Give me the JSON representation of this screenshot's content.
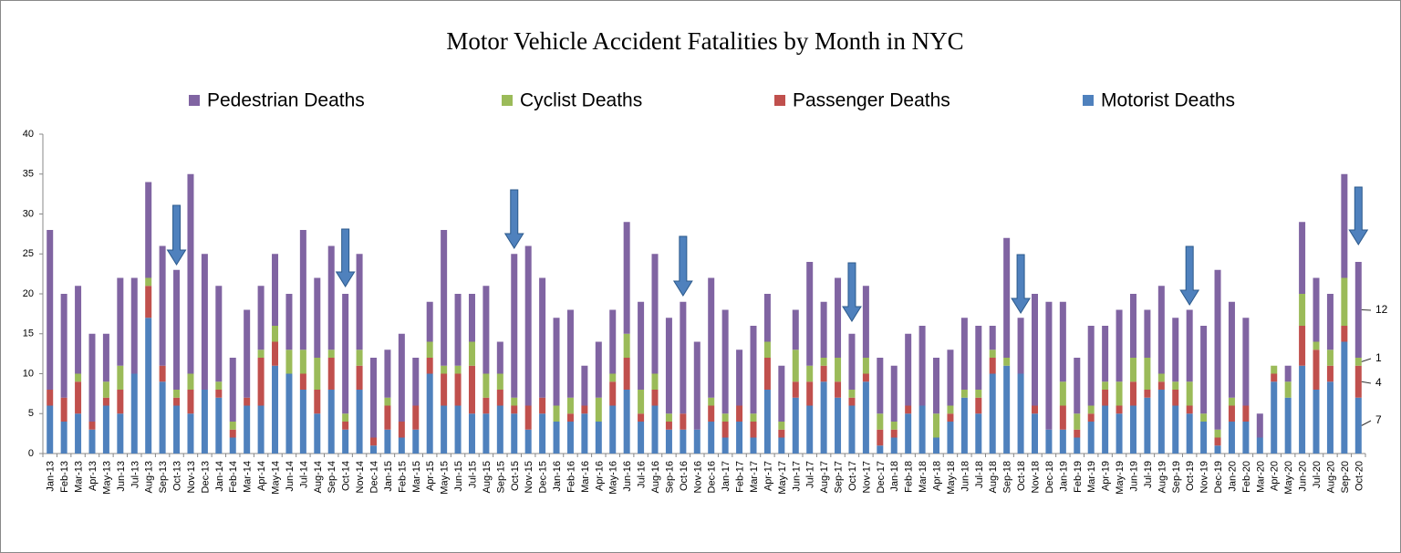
{
  "chart_data": {
    "type": "stacked-bar",
    "title": "Motor Vehicle Accident Fatalities by Month in NYC",
    "categories": [
      "Jan-13",
      "Feb-13",
      "Mar-13",
      "Apr-13",
      "May-13",
      "Jun-13",
      "Jul-13",
      "Aug-13",
      "Sep-13",
      "Oct-13",
      "Nov-13",
      "Dec-13",
      "Jan-14",
      "Feb-14",
      "Mar-14",
      "Apr-14",
      "May-14",
      "Jun-14",
      "Jul-14",
      "Aug-14",
      "Sep-14",
      "Oct-14",
      "Nov-14",
      "Dec-14",
      "Jan-15",
      "Feb-15",
      "Mar-15",
      "Apr-15",
      "May-15",
      "Jun-15",
      "Jul-15",
      "Aug-15",
      "Sep-15",
      "Oct-15",
      "Nov-15",
      "Dec-15",
      "Jan-16",
      "Feb-16",
      "Mar-16",
      "Apr-16",
      "May-16",
      "Jun-16",
      "Jul-16",
      "Aug-16",
      "Sep-16",
      "Oct-16",
      "Nov-16",
      "Dec-16",
      "Jan-17",
      "Feb-17",
      "Mar-17",
      "Apr-17",
      "May-17",
      "Jun-17",
      "Jul-17",
      "Aug-17",
      "Sep-17",
      "Oct-17",
      "Nov-17",
      "Dec-17",
      "Jan-18",
      "Feb-18",
      "Mar-18",
      "Apr-18",
      "May-18",
      "Jun-18",
      "Jul-18",
      "Aug-18",
      "Sep-18",
      "Oct-18",
      "Nov-18",
      "Dec-18",
      "Jan-19",
      "Feb-19",
      "Mar-19",
      "Apr-19",
      "May-19",
      "Jun-19",
      "Jul-19",
      "Aug-19",
      "Sep-19",
      "Oct-19",
      "Nov-19",
      "Dec-19",
      "Jan-20",
      "Feb-20",
      "Mar-20",
      "Apr-20",
      "May-20",
      "Jun-20",
      "Jul-20",
      "Aug-20",
      "Sep-20",
      "Oct-20"
    ],
    "series": [
      {
        "name": "Motorist Deaths",
        "color": "#4f81bd",
        "values": [
          6,
          4,
          5,
          3,
          6,
          5,
          10,
          17,
          9,
          6,
          5,
          8,
          7,
          2,
          6,
          6,
          11,
          10,
          8,
          5,
          8,
          3,
          8,
          1,
          3,
          2,
          3,
          10,
          6,
          6,
          5,
          5,
          6,
          5,
          3,
          5,
          4,
          4,
          5,
          4,
          6,
          8,
          4,
          6,
          3,
          3,
          3,
          4,
          2,
          4,
          2,
          8,
          2,
          7,
          6,
          9,
          7,
          6,
          9,
          1,
          2,
          5,
          6,
          2,
          4,
          7,
          5,
          10,
          11,
          10,
          5,
          3,
          3,
          2,
          4,
          6,
          5,
          6,
          7,
          8,
          6,
          5,
          4,
          1,
          4,
          4,
          2,
          9,
          7,
          11,
          8,
          9,
          14,
          7
        ]
      },
      {
        "name": "Passenger Deaths",
        "color": "#c0504d",
        "values": [
          2,
          3,
          4,
          1,
          1,
          3,
          0,
          4,
          2,
          1,
          3,
          0,
          1,
          1,
          1,
          6,
          3,
          0,
          2,
          3,
          4,
          1,
          3,
          1,
          3,
          2,
          3,
          2,
          4,
          4,
          6,
          2,
          2,
          1,
          3,
          2,
          0,
          1,
          1,
          0,
          3,
          4,
          1,
          2,
          1,
          2,
          0,
          2,
          2,
          2,
          2,
          4,
          1,
          2,
          3,
          2,
          2,
          1,
          1,
          2,
          1,
          1,
          0,
          0,
          1,
          0,
          2,
          2,
          0,
          0,
          1,
          0,
          3,
          1,
          1,
          2,
          1,
          3,
          1,
          1,
          2,
          1,
          0,
          1,
          2,
          2,
          0,
          1,
          0,
          5,
          5,
          2,
          2,
          4
        ]
      },
      {
        "name": "Cyclist Deaths",
        "color": "#9bbb59",
        "values": [
          0,
          0,
          1,
          0,
          2,
          3,
          0,
          1,
          0,
          1,
          2,
          0,
          1,
          1,
          0,
          1,
          2,
          3,
          3,
          4,
          1,
          1,
          2,
          0,
          1,
          0,
          0,
          2,
          1,
          1,
          3,
          3,
          2,
          1,
          0,
          0,
          2,
          2,
          0,
          3,
          1,
          3,
          3,
          2,
          1,
          0,
          0,
          1,
          1,
          0,
          1,
          2,
          1,
          4,
          2,
          1,
          3,
          1,
          2,
          2,
          1,
          0,
          0,
          3,
          1,
          1,
          1,
          1,
          1,
          0,
          0,
          0,
          3,
          2,
          1,
          1,
          3,
          3,
          4,
          1,
          1,
          3,
          1,
          1,
          1,
          0,
          0,
          1,
          2,
          4,
          1,
          2,
          6,
          1
        ]
      },
      {
        "name": "Pedestrian Deaths",
        "color": "#8064a2",
        "values": [
          20,
          13,
          11,
          11,
          6,
          11,
          12,
          12,
          15,
          15,
          25,
          17,
          12,
          8,
          11,
          8,
          9,
          7,
          15,
          10,
          13,
          15,
          12,
          10,
          6,
          11,
          6,
          5,
          17,
          9,
          6,
          11,
          4,
          18,
          20,
          15,
          11,
          11,
          5,
          7,
          8,
          14,
          11,
          15,
          12,
          14,
          11,
          15,
          13,
          7,
          11,
          6,
          7,
          5,
          13,
          7,
          10,
          7,
          9,
          7,
          7,
          9,
          10,
          7,
          7,
          9,
          8,
          3,
          15,
          7,
          14,
          16,
          10,
          7,
          10,
          7,
          9,
          8,
          6,
          11,
          8,
          9,
          11,
          20,
          12,
          11,
          3,
          0,
          2,
          9,
          8,
          7,
          13,
          12
        ]
      }
    ],
    "ylim": [
      0,
      40
    ],
    "yticks": [
      0,
      5,
      10,
      15,
      20,
      25,
      30,
      35,
      40
    ],
    "grid": false,
    "legend": "top"
  }
}
